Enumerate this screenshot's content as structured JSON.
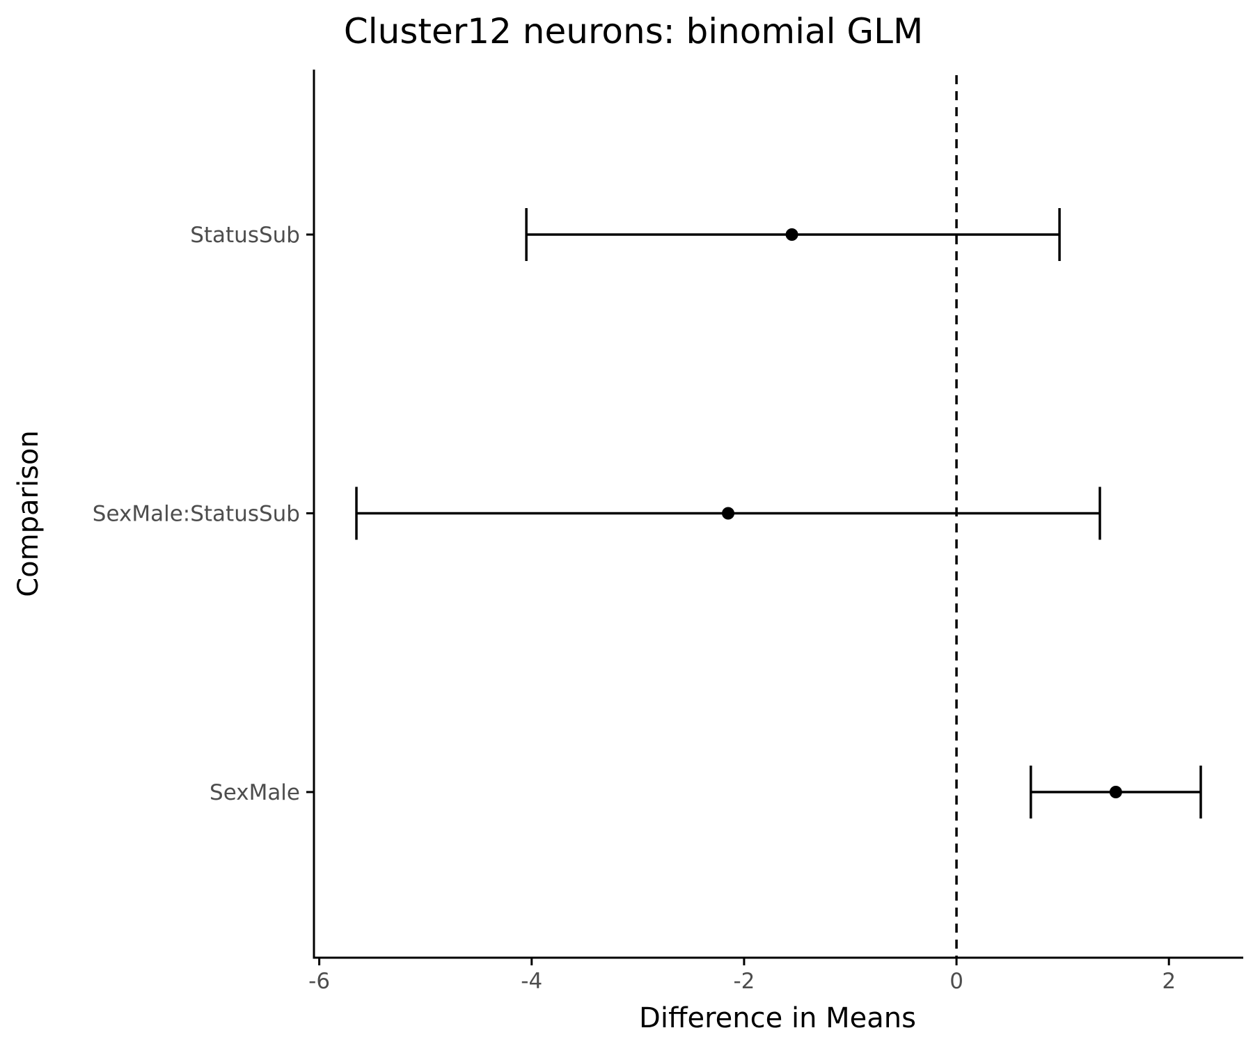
{
  "chart_data": {
    "type": "errorbar",
    "title": "Cluster12 neurons: binomial GLM",
    "xlabel": "Difference in Means",
    "ylabel": "Comparison",
    "xlim": [
      -6.05,
      2.7
    ],
    "xticks": [
      -6,
      -4,
      -2,
      0,
      2
    ],
    "xtick_labels": [
      "-6",
      "-4",
      "-2",
      "0",
      "2"
    ],
    "reference_line": {
      "x": 0,
      "style": "dashed"
    },
    "categories": [
      "StatusSub",
      "SexMale:StatusSub",
      "SexMale"
    ],
    "estimates": [
      {
        "label": "StatusSub",
        "value": -1.55,
        "lower": -4.05,
        "upper": 0.97
      },
      {
        "label": "SexMale:StatusSub",
        "value": -2.15,
        "lower": -5.65,
        "upper": 1.35
      },
      {
        "label": "SexMale",
        "value": 1.5,
        "lower": 0.7,
        "upper": 2.3
      }
    ],
    "grid": false,
    "colors": {
      "marks": "#000000",
      "tick_text": "#4d4d4d",
      "background": "#ffffff"
    }
  }
}
